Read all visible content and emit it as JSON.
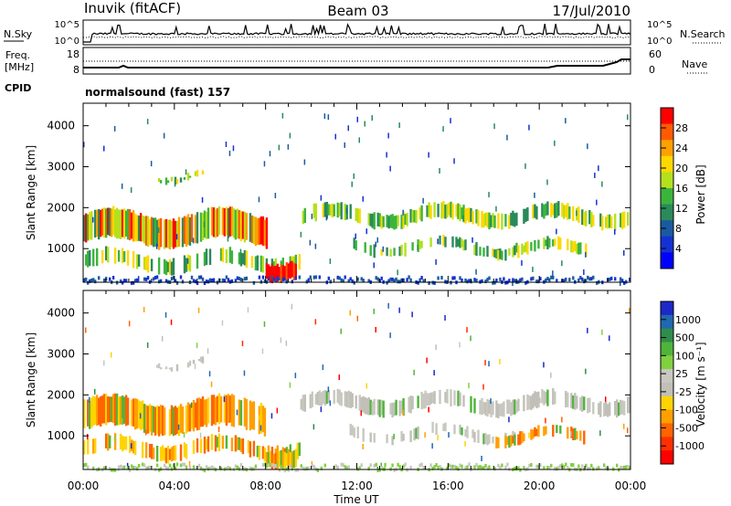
{
  "header": {
    "station": "Inuvik (fitACF)",
    "beam": "Beam 03",
    "date": "17/Jul/2010"
  },
  "panels": {
    "nsky": {
      "label": "N.Sky",
      "ticks": [
        "10^5",
        "10^0"
      ],
      "right_ticks": [
        "10^5",
        "10^0"
      ],
      "right_label": "N.Search"
    },
    "freq": {
      "label_top": "Freq.",
      "label_bottom": "[MHz]",
      "ticks": [
        "18",
        "8"
      ],
      "right_ticks": [
        "60",
        "0"
      ],
      "right_label": "Nave"
    },
    "cpid": {
      "label": "CPID",
      "text": "normalsound (fast) 157"
    }
  },
  "chart_data": [
    {
      "type": "heatmap",
      "name": "power",
      "ylabel": "Slant Range [km]",
      "yticks": [
        1000,
        2000,
        3000,
        4000
      ],
      "ylim": [
        180,
        4550
      ],
      "colorbar": {
        "label": "Power [dB]",
        "ticks": [
          "28",
          "24",
          "20",
          "16",
          "12",
          "8",
          "4"
        ],
        "colors": [
          "#ff0000",
          "#ff5a00",
          "#ffa000",
          "#ffd800",
          "#b4e01e",
          "#3cb43c",
          "#2a8a5a",
          "#1a5aa0",
          "#1432d2",
          "#0000ff"
        ]
      }
    },
    {
      "type": "heatmap",
      "name": "velocity",
      "ylabel": "Slant Range [km]",
      "yticks": [
        1000,
        2000,
        3000,
        4000
      ],
      "ylim": [
        180,
        4550
      ],
      "colorbar": {
        "label": "Velocity [m s⁻¹]",
        "ticks": [
          "1000",
          "500",
          "100",
          "25",
          "-25",
          "-100",
          "-500",
          "-1000"
        ],
        "colors": [
          "#1c28c8",
          "#2068b0",
          "#2e8c4c",
          "#50b43a",
          "#80d040",
          "#c8c8c0",
          "#c0c0b8",
          "#ffd400",
          "#ffa000",
          "#ff6400",
          "#ff3000",
          "#ff0000"
        ]
      }
    }
  ],
  "xaxis": {
    "label": "Time UT",
    "ticks": [
      "00:00",
      "04:00",
      "08:00",
      "12:00",
      "16:00",
      "20:00",
      "00:00"
    ]
  }
}
